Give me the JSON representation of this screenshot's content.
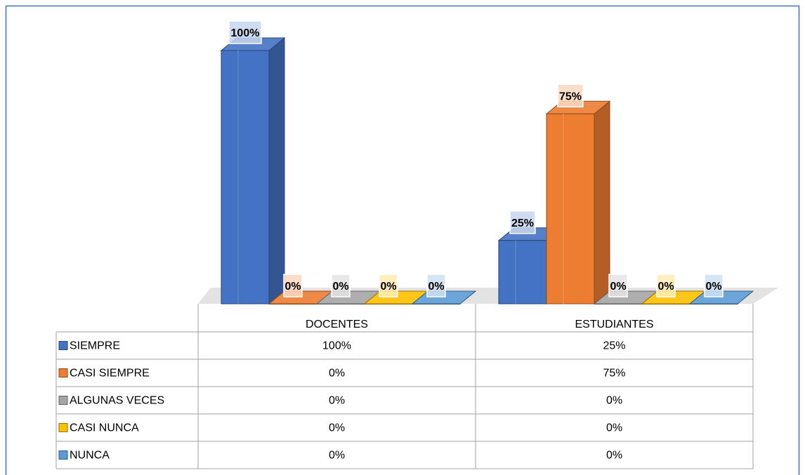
{
  "chart_data": {
    "type": "bar3d",
    "categories": [
      "DOCENTES",
      "ESTUDIANTES"
    ],
    "ylim": [
      0,
      100
    ],
    "series": [
      {
        "name": "SIEMPRE",
        "color": "#4472c4",
        "values": [
          100,
          25
        ],
        "value_labels": [
          "100%",
          "25%"
        ]
      },
      {
        "name": "CASI SIEMPRE",
        "color": "#ed7d31",
        "values": [
          0,
          75
        ],
        "value_labels": [
          "0%",
          "75%"
        ]
      },
      {
        "name": "ALGUNAS VECES",
        "color": "#a5a5a5",
        "values": [
          0,
          0
        ],
        "value_labels": [
          "0%",
          "0%"
        ]
      },
      {
        "name": "CASI NUNCA",
        "color": "#ffc000",
        "values": [
          0,
          0
        ],
        "value_labels": [
          "0%",
          "0%"
        ]
      },
      {
        "name": "NUNCA",
        "color": "#5b9bd5",
        "values": [
          0,
          0
        ],
        "value_labels": [
          "0%",
          "0%"
        ]
      }
    ]
  }
}
